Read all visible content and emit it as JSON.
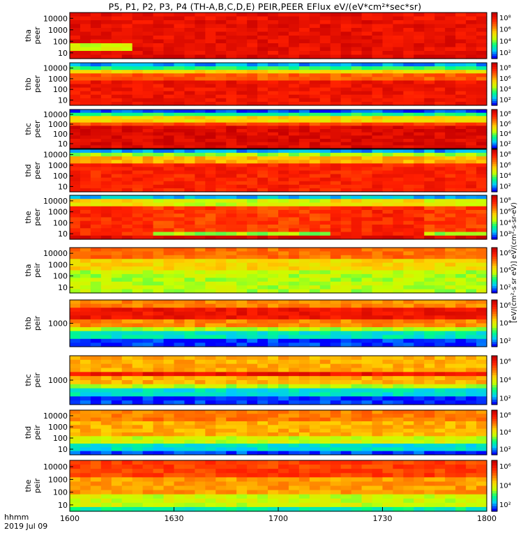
{
  "title": "P5, P1, P2, P3, P4 (TH-A,B,C,D,E) PEIR,PEER EFlux eV/(eV*cm²*sec*sr)",
  "chart_data": {
    "type": "heatmap",
    "x_label_top": "hhmm",
    "x_label_bottom": "2019 Jul 09",
    "x_ticks": [
      "1600",
      "1630",
      "1700",
      "1730",
      "1800"
    ],
    "x_range": [
      "1600",
      "1800"
    ],
    "colorbar_label": "[eV/(cm²-s sr eV)] eV/(cm²-s-sr-eV)",
    "colorscale": [
      "#0000ff",
      "#00c8ff",
      "#00ff80",
      "#c8ff00",
      "#ffd000",
      "#ff7000",
      "#ff1e00",
      "#c80000"
    ],
    "panels": [
      {
        "id": "tha-peer",
        "label1": "tha",
        "label2": "peer",
        "y_ticks": [
          "10000",
          "1000",
          "100",
          "10"
        ],
        "cb_ticks": [
          "10⁸",
          "10⁶",
          "10⁴",
          "10²"
        ],
        "profile": "tha_peer"
      },
      {
        "id": "thb-peer",
        "label1": "thb",
        "label2": "peer",
        "y_ticks": [
          "10000",
          "1000",
          "100",
          "10"
        ],
        "cb_ticks": [
          "10⁸",
          "10⁶",
          "10⁴",
          "10²"
        ],
        "profile": "thb_peer"
      },
      {
        "id": "thc-peer",
        "label1": "thc",
        "label2": "peer",
        "y_ticks": [
          "10000",
          "1000",
          "100",
          "10"
        ],
        "cb_ticks": [
          "10⁸",
          "10⁶",
          "10⁴",
          "10²"
        ],
        "profile": "thc_peer"
      },
      {
        "id": "thd-peer",
        "label1": "thd",
        "label2": "peer",
        "y_ticks": [
          "10000",
          "1000",
          "100",
          "10"
        ],
        "cb_ticks": [
          "10⁸",
          "10⁶",
          "10⁴",
          "10²"
        ],
        "profile": "thd_peer"
      },
      {
        "id": "the-peer",
        "label1": "the",
        "label2": "peer",
        "y_ticks": [
          "10000",
          "1000",
          "100",
          "10"
        ],
        "cb_ticks": [
          "10⁸",
          "10⁶",
          "10⁴",
          "10²"
        ],
        "profile": "the_peer"
      },
      {
        "id": "tha-peir",
        "label1": "tha",
        "label2": "peir",
        "y_ticks": [
          "10000",
          "1000",
          "100",
          "10"
        ],
        "cb_ticks": [
          "10⁶",
          "10⁴",
          "10²"
        ],
        "profile": "tha_peir"
      },
      {
        "id": "thb-peir",
        "label1": "thb",
        "label2": "peir",
        "y_ticks": [
          "1000"
        ],
        "cb_ticks": [
          "10⁶",
          "10⁴",
          "10²"
        ],
        "profile": "thb_peir"
      },
      {
        "id": "thc-peir",
        "label1": "thc",
        "label2": "peir",
        "y_ticks": [
          "1000"
        ],
        "cb_ticks": [
          "10⁶",
          "10⁴",
          "10²"
        ],
        "profile": "thc_peir"
      },
      {
        "id": "thd-peir",
        "label1": "thd",
        "label2": "peir",
        "y_ticks": [
          "10000",
          "1000",
          "100",
          "10"
        ],
        "cb_ticks": [
          "10⁶",
          "10⁴",
          "10²"
        ],
        "profile": "thd_peir"
      },
      {
        "id": "the-peir",
        "label1": "the",
        "label2": "peir",
        "y_ticks": [
          "10000",
          "1000",
          "100",
          "10"
        ],
        "cb_ticks": [
          "10⁶",
          "10⁴",
          "10²"
        ],
        "profile": "the_peir"
      }
    ]
  }
}
